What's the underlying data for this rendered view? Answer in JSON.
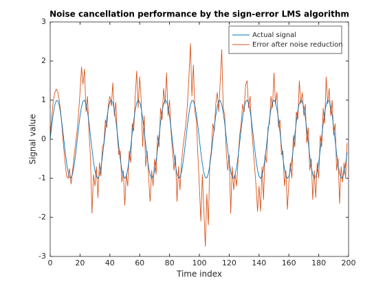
{
  "chart_data": {
    "type": "line",
    "title": "Noise cancellation performance by the sign-error LMS algorithm",
    "xlabel": "Time index",
    "ylabel": "Signal value",
    "xlim": [
      0,
      200
    ],
    "xticks": [
      0,
      20,
      40,
      60,
      80,
      100,
      120,
      140,
      160,
      180,
      200
    ],
    "ylim": [
      -3,
      3
    ],
    "yticks": [
      -3,
      -2,
      -1,
      0,
      1,
      2,
      3
    ],
    "legend": "upper right",
    "x": [
      0,
      1,
      2,
      3,
      4,
      5,
      6,
      7,
      8,
      9,
      10,
      11,
      12,
      13,
      14,
      15,
      16,
      17,
      18,
      19,
      20,
      21,
      22,
      23,
      24,
      25,
      26,
      27,
      28,
      29,
      30,
      31,
      32,
      33,
      34,
      35,
      36,
      37,
      38,
      39,
      40,
      41,
      42,
      43,
      44,
      45,
      46,
      47,
      48,
      49,
      50,
      51,
      52,
      53,
      54,
      55,
      56,
      57,
      58,
      59,
      60,
      61,
      62,
      63,
      64,
      65,
      66,
      67,
      68,
      69,
      70,
      71,
      72,
      73,
      74,
      75,
      76,
      77,
      78,
      79,
      80,
      81,
      82,
      83,
      84,
      85,
      86,
      87,
      88,
      89,
      90,
      91,
      92,
      93,
      94,
      95,
      96,
      97,
      98,
      99,
      100,
      101,
      102,
      103,
      104,
      105,
      106,
      107,
      108,
      109,
      110,
      111,
      112,
      113,
      114,
      115,
      116,
      117,
      118,
      119,
      120,
      121,
      122,
      123,
      124,
      125,
      126,
      127,
      128,
      129,
      130,
      131,
      132,
      133,
      134,
      135,
      136,
      137,
      138,
      139,
      140,
      141,
      142,
      143,
      144,
      145,
      146,
      147,
      148,
      149,
      150,
      151,
      152,
      153,
      154,
      155,
      156,
      157,
      158,
      159,
      160,
      161,
      162,
      163,
      164,
      165,
      166,
      167,
      168,
      169,
      170,
      171,
      172,
      173,
      174,
      175,
      176,
      177,
      178,
      179,
      180,
      181,
      182,
      183,
      184,
      185,
      186,
      187,
      188,
      189,
      190,
      191,
      192,
      193,
      194,
      195,
      196,
      197,
      198,
      199
    ],
    "series": [
      {
        "name": "Actual signal",
        "color": "#0072bd",
        "values": [
          0,
          0.34,
          0.64,
          0.86,
          0.98,
          0.99,
          0.88,
          0.66,
          0.37,
          0.03,
          -0.31,
          -0.61,
          -0.84,
          -0.98,
          -0.99,
          -0.89,
          -0.68,
          -0.4,
          -0.06,
          0.28,
          0.59,
          0.83,
          0.97,
          1.0,
          0.9,
          0.71,
          0.43,
          0.09,
          -0.25,
          -0.56,
          -0.81,
          -0.96,
          -1.0,
          -0.92,
          -0.73,
          -0.45,
          -0.13,
          0.22,
          0.54,
          0.79,
          0.95,
          1.0,
          0.93,
          0.75,
          0.48,
          0.16,
          -0.19,
          -0.51,
          -0.77,
          -0.94,
          -1.0,
          -0.94,
          -0.77,
          -0.51,
          -0.19,
          0.16,
          0.48,
          0.75,
          0.93,
          1.0,
          0.95,
          0.79,
          0.54,
          0.22,
          -0.13,
          -0.45,
          -0.73,
          -0.92,
          -1.0,
          -0.96,
          -0.81,
          -0.56,
          -0.25,
          0.09,
          0.43,
          0.71,
          0.9,
          1.0,
          0.97,
          0.83,
          0.59,
          0.28,
          -0.06,
          -0.4,
          -0.68,
          -0.89,
          -0.99,
          -0.98,
          -0.84,
          -0.61,
          -0.31,
          0.03,
          0.37,
          0.66,
          0.88,
          0.99,
          0.98,
          0.86,
          0.64,
          0.34,
          0,
          -0.34,
          -0.64,
          -0.86,
          -0.98,
          -0.99,
          -0.88,
          -0.66,
          -0.37,
          -0.03,
          0.31,
          0.61,
          0.84,
          0.98,
          0.99,
          0.89,
          0.68,
          0.4,
          0.06,
          -0.28,
          -0.59,
          -0.83,
          -0.97,
          -1.0,
          -0.9,
          -0.71,
          -0.43,
          -0.09,
          0.25,
          0.56,
          0.81,
          0.96,
          1.0,
          0.92,
          0.73,
          0.45,
          0.13,
          -0.22,
          -0.54,
          -0.79,
          -0.95,
          -1.0,
          -0.93,
          -0.75,
          -0.48,
          -0.16,
          0.19,
          0.51,
          0.77,
          0.94,
          1.0,
          0.94,
          0.77,
          0.51,
          0.19,
          -0.16,
          -0.48,
          -0.75,
          -0.93,
          -1.0,
          -0.95,
          -0.79,
          -0.54,
          -0.22,
          0.13,
          0.45,
          0.73,
          0.92,
          1.0,
          0.96,
          0.81,
          0.56,
          0.25,
          -0.09,
          -0.43,
          -0.71,
          -0.9,
          -1.0,
          -0.97,
          -0.83,
          -0.59,
          -0.28,
          0.06,
          0.4,
          0.68,
          0.89,
          0.99,
          0.98,
          0.84,
          0.61,
          0.31,
          -0.03,
          -0.37,
          -0.66,
          -0.88,
          -0.99,
          -0.98,
          -0.86,
          -0.64,
          -0.34
        ]
      },
      {
        "name": "Error after noise reduction",
        "color": "#d95319",
        "values": [
          0.1,
          0.55,
          0.95,
          1.18,
          1.28,
          1.22,
          1.02,
          0.7,
          0.3,
          -0.2,
          -0.6,
          -0.95,
          -1.0,
          -0.75,
          -1.15,
          -0.8,
          -0.45,
          -0.1,
          0.2,
          0.65,
          1.2,
          1.85,
          1.4,
          1.8,
          0.7,
          1.1,
          0.2,
          -0.45,
          -1.9,
          -0.9,
          -1.2,
          -0.7,
          -1.5,
          -0.6,
          -0.95,
          -0.2,
          -0.1,
          0.5,
          0.3,
          0.9,
          1.1,
          0.85,
          1.45,
          0.6,
          0.95,
          0.1,
          -0.4,
          -0.3,
          -1.1,
          -0.8,
          -1.7,
          -0.9,
          -1.2,
          -0.3,
          -0.6,
          0.4,
          0.2,
          1.1,
          1.75,
          0.8,
          1.6,
          1.0,
          -0.2,
          0.6,
          -0.7,
          -0.3,
          -1.0,
          -1.6,
          -0.8,
          -1.2,
          -0.5,
          -0.9,
          0.1,
          -0.2,
          0.8,
          0.5,
          1.3,
          0.9,
          1.7,
          0.6,
          1.0,
          0.2,
          -0.3,
          -0.8,
          -0.4,
          -1.6,
          -0.7,
          -1.3,
          -0.6,
          -0.2,
          0.1,
          0.4,
          0.9,
          1.6,
          2.45,
          1.1,
          1.9,
          0.7,
          0.5,
          -0.4,
          -1.2,
          -2.1,
          -0.9,
          -1.8,
          -2.75,
          -1.4,
          -2.2,
          -0.6,
          -0.3,
          0.4,
          0.2,
          0.9,
          1.2,
          0.7,
          1.5,
          2.3,
          0.8,
          0.6,
          -0.3,
          -0.8,
          -0.4,
          -1.9,
          -0.7,
          -1.3,
          -0.9,
          -1.2,
          -0.5,
          0.1,
          0.4,
          0.9,
          0.7,
          1.4,
          1.5,
          0.8,
          1.1,
          0.3,
          -0.2,
          -0.7,
          -1.2,
          -1.85,
          -1.2,
          -1.85,
          -0.7,
          -1.55,
          -0.4,
          -0.6,
          0.3,
          0.4,
          1.1,
          0.8,
          1.7,
          0.9,
          1.2,
          0.3,
          0.5,
          -0.4,
          -0.3,
          -1.2,
          -0.8,
          -1.8,
          -1.1,
          -0.6,
          -1.0,
          0.1,
          -0.2,
          0.7,
          0.5,
          1.5,
          0.9,
          1.2,
          0.6,
          0.9,
          -0.1,
          0.3,
          -0.8,
          -0.5,
          -1.55,
          -0.8,
          -1.5,
          -0.6,
          -1.0,
          0.1,
          -0.2,
          0.8,
          0.4,
          1.6,
          0.9,
          1.3,
          0.6,
          1.0,
          0.1,
          0.4,
          -0.8,
          -0.5,
          -1.65,
          -0.7,
          -1.1,
          -0.6,
          -1.0,
          -0.1
        ]
      }
    ]
  }
}
